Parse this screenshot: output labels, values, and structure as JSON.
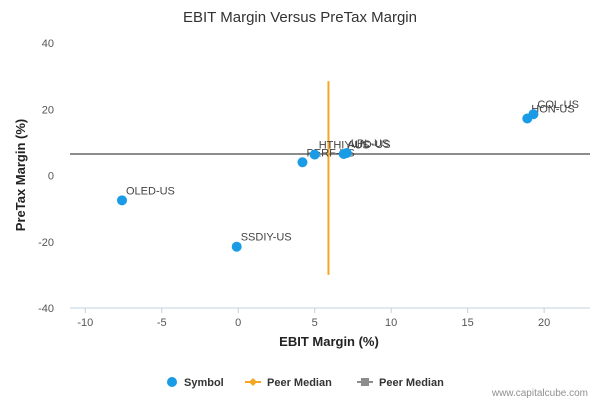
{
  "chart_data": {
    "type": "scatter",
    "title": "EBIT Margin Versus PreTax Margin",
    "xlabel": "EBIT Margin (%)",
    "ylabel": "PreTax Margin (%)",
    "xlim": [
      -11,
      23
    ],
    "ylim": [
      -40,
      40
    ],
    "xticks": [
      -10,
      -5,
      0,
      5,
      10,
      15,
      20
    ],
    "yticks": [
      -40,
      -20,
      0,
      20,
      40
    ],
    "grid": false,
    "legend_position": "bottom",
    "series": [
      {
        "name": "Symbol",
        "color": "#1a9be6",
        "points": [
          {
            "label": "OLED-US",
            "x": -7.6,
            "y": -7.5
          },
          {
            "label": "SSDIY-US",
            "x": -0.1,
            "y": -21.5
          },
          {
            "label": "PERF-US",
            "x": 4.2,
            "y": 4.0
          },
          {
            "label": "HTHIY-US",
            "x": 5.0,
            "y": 6.3
          },
          {
            "label": "AUO-US",
            "x": 6.9,
            "y": 6.5
          },
          {
            "label": "LPL-US",
            "x": 7.1,
            "y": 6.8
          },
          {
            "label": "HON-US",
            "x": 18.9,
            "y": 17.2
          },
          {
            "label": "COL-US",
            "x": 19.3,
            "y": 18.5
          }
        ]
      }
    ],
    "peer_median_x": {
      "name": "Peer Median",
      "value": 5.9,
      "y_range": [
        -30,
        28.5
      ],
      "color": "#f5a623"
    },
    "peer_median_y": {
      "name": "Peer Median",
      "value": 6.5,
      "color": "#8c8c8c"
    },
    "credit": "www.capitalcube.com"
  }
}
